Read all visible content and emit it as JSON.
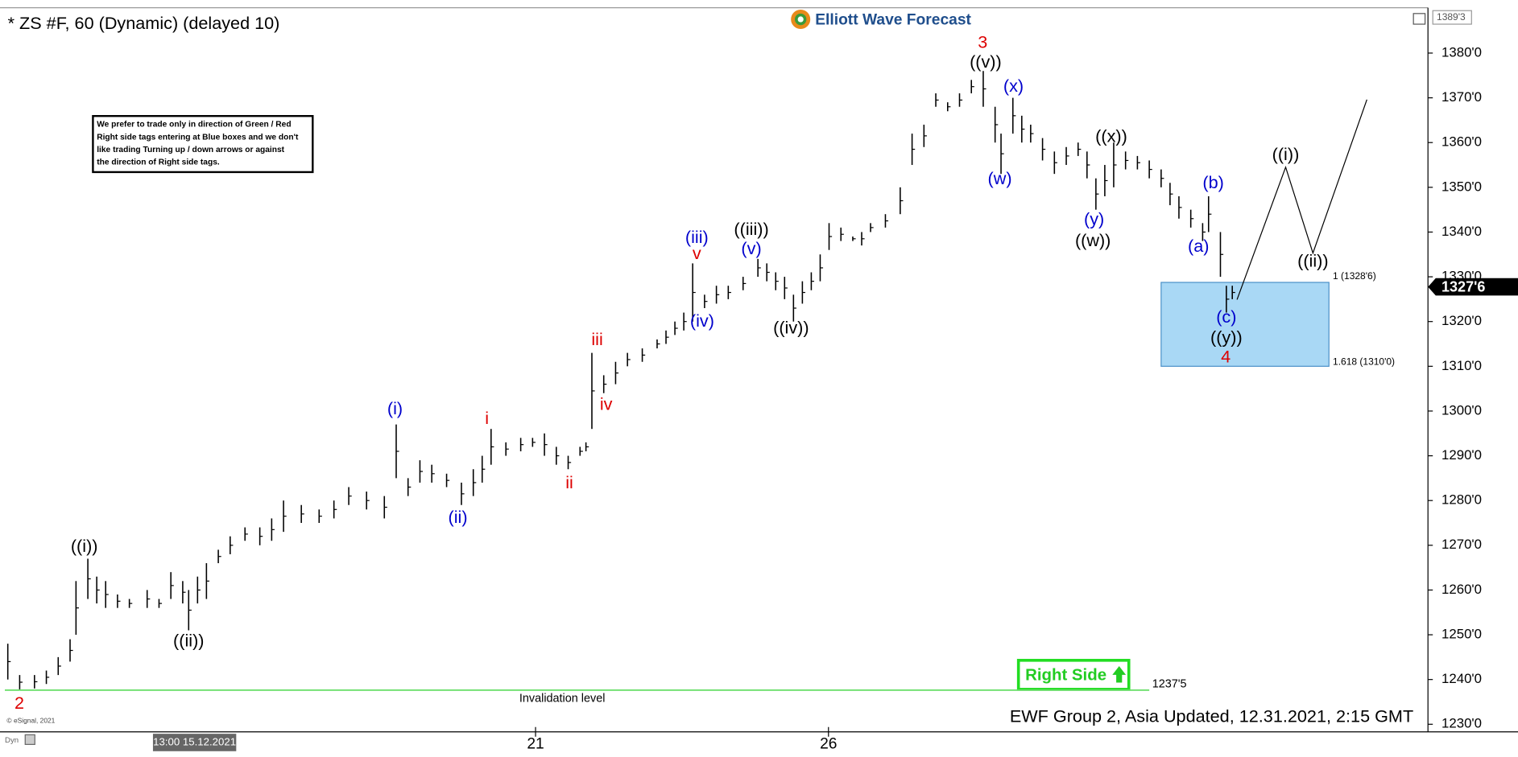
{
  "chart_data": {
    "type": "ohlc",
    "title": "* ZS #F, 60 (Dynamic) (delayed 10)",
    "logo": "Elliott Wave Forecast",
    "note": [
      "We prefer to trade only in direction of Green / Red",
      "Right side tags entering at Blue boxes and we don't",
      "like trading Turning up / down arrows or against",
      "the direction of Right side tags."
    ],
    "footer": "EWF Group 2, Asia Updated, 12.31.2021, 2:15 GMT",
    "copyright": "© eSignal, 2021",
    "mode": "Dyn",
    "max_label": "1389'3",
    "right_side": "Right Side",
    "color": "#000000",
    "xlim": [
      0,
      240
    ],
    "ylim": [
      1228.3,
      1389.7
    ],
    "xticks": [
      {
        "value": 32,
        "label": "13:00 15.12.2021"
      },
      {
        "value": 89.5,
        "label": "21"
      },
      {
        "value": 138.9,
        "label": "26"
      }
    ],
    "yticks": [
      {
        "value": 1230,
        "label": "1230'0"
      },
      {
        "value": 1240,
        "label": "1240'0"
      },
      {
        "value": 1250,
        "label": "1250'0"
      },
      {
        "value": 1260,
        "label": "1260'0"
      },
      {
        "value": 1270,
        "label": "1270'0"
      },
      {
        "value": 1280,
        "label": "1280'0"
      },
      {
        "value": 1290,
        "label": "1290'0"
      },
      {
        "value": 1300,
        "label": "1300'0"
      },
      {
        "value": 1310,
        "label": "1310'0"
      },
      {
        "value": 1320,
        "label": "1320'0"
      },
      {
        "value": 1330,
        "label": "1330'0"
      },
      {
        "value": 1340,
        "label": "1340'0"
      },
      {
        "value": 1350,
        "label": "1350'0"
      },
      {
        "value": 1360,
        "label": "1360'0"
      },
      {
        "value": 1370,
        "label": "1370'0"
      },
      {
        "value": 1380,
        "label": "1380'0"
      }
    ],
    "grid": false,
    "x": [
      0.5,
      2.5,
      5,
      7,
      9,
      11,
      12,
      14,
      15.5,
      17,
      19,
      21,
      24,
      26,
      28,
      30,
      31,
      32.5,
      34,
      36,
      38,
      40.5,
      43,
      45,
      47,
      50,
      53,
      55.5,
      58,
      61,
      64,
      66,
      68,
      70,
      72,
      74.5,
      77,
      79,
      80.5,
      82,
      84.5,
      87,
      89,
      91,
      93,
      95,
      97,
      98,
      99,
      101,
      103,
      105,
      107.5,
      110,
      111.5,
      113,
      114.5,
      116,
      118,
      120,
      122,
      124.5,
      127,
      128.5,
      130,
      131.5,
      133,
      134.5,
      136,
      137.5,
      139,
      141,
      143,
      144.5,
      146,
      148.5,
      151,
      153,
      155,
      157,
      159,
      161,
      163,
      165,
      167,
      168,
      170,
      171.5,
      173,
      175,
      177,
      179,
      181,
      182.5,
      184,
      185.5,
      187,
      189,
      191,
      193,
      195,
      196.5,
      198,
      200,
      202,
      203,
      205,
      206,
      207
    ],
    "high": [
      1248,
      1241,
      1241,
      1242,
      1245,
      1249,
      1262,
      1267,
      1263,
      1262,
      1259,
      1258,
      1260,
      1258,
      1264,
      1262,
      1260,
      1263,
      1266,
      1269,
      1272,
      1274,
      1274,
      1276,
      1280,
      1279,
      1278,
      1280,
      1283,
      1282,
      1281,
      1297,
      1285,
      1289,
      1288,
      1286,
      1284,
      1287,
      1290,
      1296,
      1293,
      1294,
      1294,
      1295,
      1292,
      1290,
      1292,
      1293,
      1313,
      1308,
      1311,
      1313,
      1314,
      1316,
      1318,
      1320,
      1322,
      1333,
      1326,
      1328,
      1328,
      1330,
      1334,
      1333,
      1331,
      1330,
      1326,
      1329,
      1331,
      1335,
      1342,
      1341,
      1339,
      1340,
      1342,
      1344,
      1350,
      1362,
      1364,
      1371,
      1369,
      1371,
      1374,
      1376,
      1368,
      1362,
      1370,
      1366,
      1364,
      1361,
      1358,
      1359,
      1360,
      1358,
      1352,
      1355,
      1360,
      1358,
      1357,
      1356,
      1354,
      1351,
      1348,
      1345,
      1342,
      1348,
      1340,
      1328,
      1328
    ],
    "low": [
      1240,
      1237.8,
      1238,
      1239,
      1241,
      1244,
      1250,
      1258,
      1257,
      1256,
      1256,
      1256,
      1256,
      1256,
      1258,
      1257,
      1251,
      1257,
      1258,
      1266,
      1268,
      1271,
      1270,
      1271,
      1273,
      1275,
      1275,
      1276,
      1279,
      1278,
      1276,
      1285,
      1281,
      1284,
      1284,
      1283,
      1279,
      1281,
      1284,
      1288,
      1290,
      1291,
      1292,
      1290,
      1288,
      1287,
      1290,
      1291,
      1296,
      1304,
      1306,
      1310,
      1311,
      1314,
      1315,
      1317,
      1318,
      1320,
      1323,
      1324,
      1325,
      1327,
      1330,
      1329,
      1327,
      1325,
      1320,
      1324,
      1327,
      1329,
      1336,
      1338,
      1338,
      1337,
      1340,
      1341,
      1344,
      1355,
      1359,
      1368,
      1367,
      1368,
      1371,
      1368,
      1360,
      1353,
      1362,
      1360,
      1360,
      1356,
      1353,
      1355,
      1357,
      1352,
      1345,
      1348,
      1350,
      1354,
      1354,
      1352,
      1350,
      1346,
      1343,
      1341,
      1338,
      1340,
      1330,
      1322,
      1325
    ],
    "current": {
      "value": 1327.75,
      "label": "1327'6"
    },
    "target_box": {
      "x": [
        195,
        223.3
      ],
      "color": "#a9d8f5",
      "levels": [
        {
          "value": 1328.75,
          "label": "1 (1328'6)"
        },
        {
          "value": 1310,
          "label": "1.618 (1310'0)"
        }
      ]
    },
    "invalidation": {
      "value": 1237.625,
      "label": "1237'5",
      "text": "Invalidation level",
      "x": [
        0,
        193
      ],
      "text_x": 94,
      "color": "#66dd66"
    },
    "projection": {
      "x": [
        207.8,
        216,
        220.6,
        229.7
      ],
      "values": [
        1324.9,
        1354.5,
        1335.3,
        1369.6
      ]
    },
    "annotations": [
      {
        "text": "2",
        "x": 2.45,
        "y": 1234.5,
        "color": "#dd0000"
      },
      {
        "text": "((i))",
        "x": 13.4,
        "y": 1269.6,
        "color": "#000000"
      },
      {
        "text": "((ii))",
        "x": 31.0,
        "y": 1248.4,
        "color": "#000000"
      },
      {
        "text": "(i)",
        "x": 65.8,
        "y": 1300.3,
        "color": "#0000cc"
      },
      {
        "text": "(ii)",
        "x": 76.4,
        "y": 1276.0,
        "color": "#0000cc"
      },
      {
        "text": "i",
        "x": 81.3,
        "y": 1298.1,
        "color": "#dd0000"
      },
      {
        "text": "ii",
        "x": 95.2,
        "y": 1283.8,
        "color": "#dd0000"
      },
      {
        "text": "iii",
        "x": 99.9,
        "y": 1315.8,
        "color": "#dd0000"
      },
      {
        "text": "iv",
        "x": 101.4,
        "y": 1301.3,
        "color": "#dd0000"
      },
      {
        "text": "v",
        "x": 116.7,
        "y": 1335.0,
        "color": "#dd0000"
      },
      {
        "text": "(iii)",
        "x": 116.7,
        "y": 1338.6,
        "color": "#0000cc"
      },
      {
        "text": "(iv)",
        "x": 117.6,
        "y": 1319.9,
        "color": "#0000cc"
      },
      {
        "text": "(v)",
        "x": 125.9,
        "y": 1336.1,
        "color": "#0000cc"
      },
      {
        "text": "((iii))",
        "x": 125.9,
        "y": 1340.4,
        "color": "#000000"
      },
      {
        "text": "((iv))",
        "x": 132.6,
        "y": 1318.4,
        "color": "#000000"
      },
      {
        "text": "3",
        "x": 164.9,
        "y": 1382.2,
        "color": "#dd0000"
      },
      {
        "text": "((v))",
        "x": 165.4,
        "y": 1377.8,
        "color": "#000000"
      },
      {
        "text": "(w)",
        "x": 167.8,
        "y": 1351.7,
        "color": "#0000cc"
      },
      {
        "text": "(x)",
        "x": 170.1,
        "y": 1372.4,
        "color": "#0000cc"
      },
      {
        "text": "((x))",
        "x": 186.6,
        "y": 1361.2,
        "color": "#000000"
      },
      {
        "text": "(y)",
        "x": 183.7,
        "y": 1342.6,
        "color": "#0000cc"
      },
      {
        "text": "((w))",
        "x": 183.5,
        "y": 1337.9,
        "color": "#000000"
      },
      {
        "text": "(b)",
        "x": 203.8,
        "y": 1350.8,
        "color": "#0000cc"
      },
      {
        "text": "(a)",
        "x": 201.3,
        "y": 1336.6,
        "color": "#0000cc"
      },
      {
        "text": "(c)",
        "x": 206.0,
        "y": 1320.8,
        "color": "#0000cc"
      },
      {
        "text": "((y))",
        "x": 206.0,
        "y": 1316.2,
        "color": "#000000"
      },
      {
        "text": "4",
        "x": 205.9,
        "y": 1311.9,
        "color": "#dd0000"
      },
      {
        "text": "((i))",
        "x": 216.0,
        "y": 1357.1,
        "color": "#000000"
      },
      {
        "text": "((ii))",
        "x": 220.6,
        "y": 1333.3,
        "color": "#000000"
      }
    ]
  }
}
